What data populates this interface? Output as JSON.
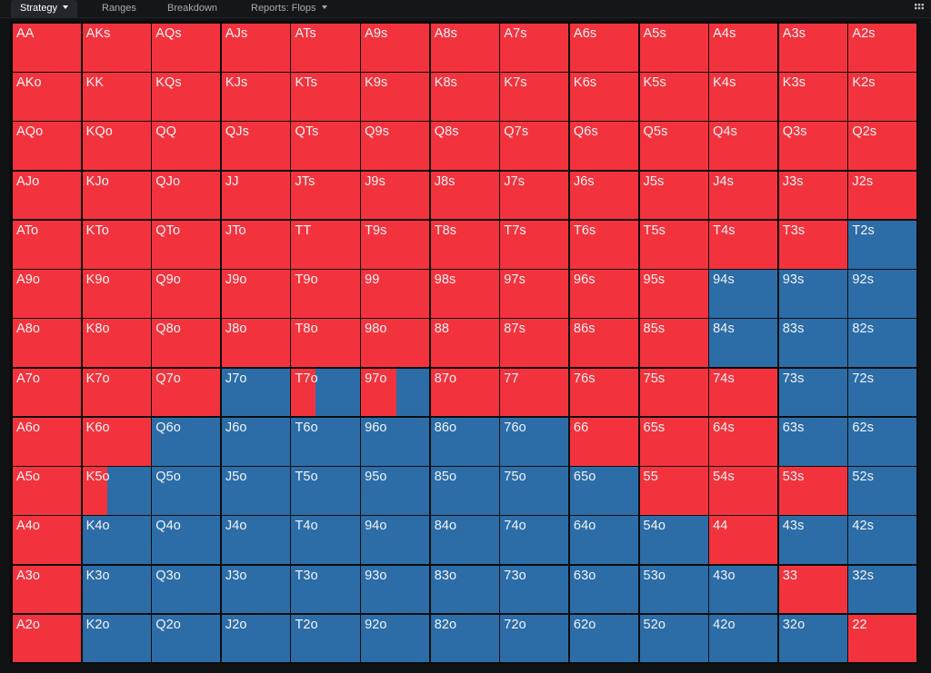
{
  "tabs": [
    {
      "label": "Strategy",
      "active": true,
      "caret": true
    },
    {
      "label": "Ranges",
      "active": false,
      "caret": false
    },
    {
      "label": "Breakdown",
      "active": false,
      "caret": false
    },
    {
      "label": "Reports: Flops",
      "active": false,
      "caret": true
    }
  ],
  "colors": {
    "action_red": "#f2333d",
    "action_blue": "#2c6da7"
  },
  "icons": {
    "layout_toggle": "grid-icon"
  },
  "matrix": {
    "columns": 13,
    "rows": [
      [
        {
          "hand": "AA",
          "red": 1
        },
        {
          "hand": "AKs",
          "red": 1
        },
        {
          "hand": "AQs",
          "red": 1
        },
        {
          "hand": "AJs",
          "red": 1
        },
        {
          "hand": "ATs",
          "red": 1
        },
        {
          "hand": "A9s",
          "red": 1
        },
        {
          "hand": "A8s",
          "red": 1
        },
        {
          "hand": "A7s",
          "red": 1
        },
        {
          "hand": "A6s",
          "red": 1
        },
        {
          "hand": "A5s",
          "red": 1
        },
        {
          "hand": "A4s",
          "red": 1
        },
        {
          "hand": "A3s",
          "red": 1
        },
        {
          "hand": "A2s",
          "red": 1
        }
      ],
      [
        {
          "hand": "AKo",
          "red": 1
        },
        {
          "hand": "KK",
          "red": 1
        },
        {
          "hand": "KQs",
          "red": 1
        },
        {
          "hand": "KJs",
          "red": 1
        },
        {
          "hand": "KTs",
          "red": 1
        },
        {
          "hand": "K9s",
          "red": 1
        },
        {
          "hand": "K8s",
          "red": 1
        },
        {
          "hand": "K7s",
          "red": 1
        },
        {
          "hand": "K6s",
          "red": 1
        },
        {
          "hand": "K5s",
          "red": 1
        },
        {
          "hand": "K4s",
          "red": 1
        },
        {
          "hand": "K3s",
          "red": 1
        },
        {
          "hand": "K2s",
          "red": 1
        }
      ],
      [
        {
          "hand": "AQo",
          "red": 1
        },
        {
          "hand": "KQo",
          "red": 1
        },
        {
          "hand": "QQ",
          "red": 1
        },
        {
          "hand": "QJs",
          "red": 1
        },
        {
          "hand": "QTs",
          "red": 1
        },
        {
          "hand": "Q9s",
          "red": 1
        },
        {
          "hand": "Q8s",
          "red": 1
        },
        {
          "hand": "Q7s",
          "red": 1
        },
        {
          "hand": "Q6s",
          "red": 1
        },
        {
          "hand": "Q5s",
          "red": 1
        },
        {
          "hand": "Q4s",
          "red": 1
        },
        {
          "hand": "Q3s",
          "red": 1
        },
        {
          "hand": "Q2s",
          "red": 1
        }
      ],
      [
        {
          "hand": "AJo",
          "red": 1
        },
        {
          "hand": "KJo",
          "red": 1
        },
        {
          "hand": "QJo",
          "red": 1
        },
        {
          "hand": "JJ",
          "red": 1
        },
        {
          "hand": "JTs",
          "red": 1
        },
        {
          "hand": "J9s",
          "red": 1
        },
        {
          "hand": "J8s",
          "red": 1
        },
        {
          "hand": "J7s",
          "red": 1
        },
        {
          "hand": "J6s",
          "red": 1
        },
        {
          "hand": "J5s",
          "red": 1
        },
        {
          "hand": "J4s",
          "red": 1
        },
        {
          "hand": "J3s",
          "red": 1
        },
        {
          "hand": "J2s",
          "red": 1
        }
      ],
      [
        {
          "hand": "ATo",
          "red": 1
        },
        {
          "hand": "KTo",
          "red": 1
        },
        {
          "hand": "QTo",
          "red": 1
        },
        {
          "hand": "JTo",
          "red": 1
        },
        {
          "hand": "TT",
          "red": 1
        },
        {
          "hand": "T9s",
          "red": 1
        },
        {
          "hand": "T8s",
          "red": 1
        },
        {
          "hand": "T7s",
          "red": 1
        },
        {
          "hand": "T6s",
          "red": 1
        },
        {
          "hand": "T5s",
          "red": 1
        },
        {
          "hand": "T4s",
          "red": 1
        },
        {
          "hand": "T3s",
          "red": 1
        },
        {
          "hand": "T2s",
          "red": 0
        }
      ],
      [
        {
          "hand": "A9o",
          "red": 1
        },
        {
          "hand": "K9o",
          "red": 1
        },
        {
          "hand": "Q9o",
          "red": 1
        },
        {
          "hand": "J9o",
          "red": 1
        },
        {
          "hand": "T9o",
          "red": 1
        },
        {
          "hand": "99",
          "red": 1
        },
        {
          "hand": "98s",
          "red": 1
        },
        {
          "hand": "97s",
          "red": 1
        },
        {
          "hand": "96s",
          "red": 1
        },
        {
          "hand": "95s",
          "red": 1
        },
        {
          "hand": "94s",
          "red": 0
        },
        {
          "hand": "93s",
          "red": 0
        },
        {
          "hand": "92s",
          "red": 0
        }
      ],
      [
        {
          "hand": "A8o",
          "red": 1
        },
        {
          "hand": "K8o",
          "red": 1
        },
        {
          "hand": "Q8o",
          "red": 1
        },
        {
          "hand": "J8o",
          "red": 1
        },
        {
          "hand": "T8o",
          "red": 1
        },
        {
          "hand": "98o",
          "red": 1
        },
        {
          "hand": "88",
          "red": 1
        },
        {
          "hand": "87s",
          "red": 1
        },
        {
          "hand": "86s",
          "red": 1
        },
        {
          "hand": "85s",
          "red": 1
        },
        {
          "hand": "84s",
          "red": 0
        },
        {
          "hand": "83s",
          "red": 0
        },
        {
          "hand": "82s",
          "red": 0
        }
      ],
      [
        {
          "hand": "A7o",
          "red": 1
        },
        {
          "hand": "K7o",
          "red": 1
        },
        {
          "hand": "Q7o",
          "red": 1
        },
        {
          "hand": "J7o",
          "red": 0
        },
        {
          "hand": "T7o",
          "red": 0.35
        },
        {
          "hand": "97o",
          "red": 0.52
        },
        {
          "hand": "87o",
          "red": 1
        },
        {
          "hand": "77",
          "red": 1
        },
        {
          "hand": "76s",
          "red": 1
        },
        {
          "hand": "75s",
          "red": 1
        },
        {
          "hand": "74s",
          "red": 1
        },
        {
          "hand": "73s",
          "red": 0
        },
        {
          "hand": "72s",
          "red": 0
        }
      ],
      [
        {
          "hand": "A6o",
          "red": 1
        },
        {
          "hand": "K6o",
          "red": 1
        },
        {
          "hand": "Q6o",
          "red": 0
        },
        {
          "hand": "J6o",
          "red": 0
        },
        {
          "hand": "T6o",
          "red": 0
        },
        {
          "hand": "96o",
          "red": 0
        },
        {
          "hand": "86o",
          "red": 0
        },
        {
          "hand": "76o",
          "red": 0
        },
        {
          "hand": "66",
          "red": 1
        },
        {
          "hand": "65s",
          "red": 1
        },
        {
          "hand": "64s",
          "red": 1
        },
        {
          "hand": "63s",
          "red": 0
        },
        {
          "hand": "62s",
          "red": 0
        }
      ],
      [
        {
          "hand": "A5o",
          "red": 1
        },
        {
          "hand": "K5o",
          "red": 0.36
        },
        {
          "hand": "Q5o",
          "red": 0
        },
        {
          "hand": "J5o",
          "red": 0
        },
        {
          "hand": "T5o",
          "red": 0
        },
        {
          "hand": "95o",
          "red": 0
        },
        {
          "hand": "85o",
          "red": 0
        },
        {
          "hand": "75o",
          "red": 0
        },
        {
          "hand": "65o",
          "red": 0
        },
        {
          "hand": "55",
          "red": 1
        },
        {
          "hand": "54s",
          "red": 1
        },
        {
          "hand": "53s",
          "red": 1
        },
        {
          "hand": "52s",
          "red": 0
        }
      ],
      [
        {
          "hand": "A4o",
          "red": 1
        },
        {
          "hand": "K4o",
          "red": 0
        },
        {
          "hand": "Q4o",
          "red": 0
        },
        {
          "hand": "J4o",
          "red": 0
        },
        {
          "hand": "T4o",
          "red": 0
        },
        {
          "hand": "94o",
          "red": 0
        },
        {
          "hand": "84o",
          "red": 0
        },
        {
          "hand": "74o",
          "red": 0
        },
        {
          "hand": "64o",
          "red": 0
        },
        {
          "hand": "54o",
          "red": 0
        },
        {
          "hand": "44",
          "red": 1
        },
        {
          "hand": "43s",
          "red": 0
        },
        {
          "hand": "42s",
          "red": 0
        }
      ],
      [
        {
          "hand": "A3o",
          "red": 1
        },
        {
          "hand": "K3o",
          "red": 0
        },
        {
          "hand": "Q3o",
          "red": 0
        },
        {
          "hand": "J3o",
          "red": 0
        },
        {
          "hand": "T3o",
          "red": 0
        },
        {
          "hand": "93o",
          "red": 0
        },
        {
          "hand": "83o",
          "red": 0
        },
        {
          "hand": "73o",
          "red": 0
        },
        {
          "hand": "63o",
          "red": 0
        },
        {
          "hand": "53o",
          "red": 0
        },
        {
          "hand": "43o",
          "red": 0
        },
        {
          "hand": "33",
          "red": 1
        },
        {
          "hand": "32s",
          "red": 0
        }
      ],
      [
        {
          "hand": "A2o",
          "red": 1
        },
        {
          "hand": "K2o",
          "red": 0
        },
        {
          "hand": "Q2o",
          "red": 0
        },
        {
          "hand": "J2o",
          "red": 0
        },
        {
          "hand": "T2o",
          "red": 0
        },
        {
          "hand": "92o",
          "red": 0
        },
        {
          "hand": "82o",
          "red": 0
        },
        {
          "hand": "72o",
          "red": 0
        },
        {
          "hand": "62o",
          "red": 0
        },
        {
          "hand": "52o",
          "red": 0
        },
        {
          "hand": "42o",
          "red": 0
        },
        {
          "hand": "32o",
          "red": 0
        },
        {
          "hand": "22",
          "red": 1
        }
      ]
    ]
  }
}
